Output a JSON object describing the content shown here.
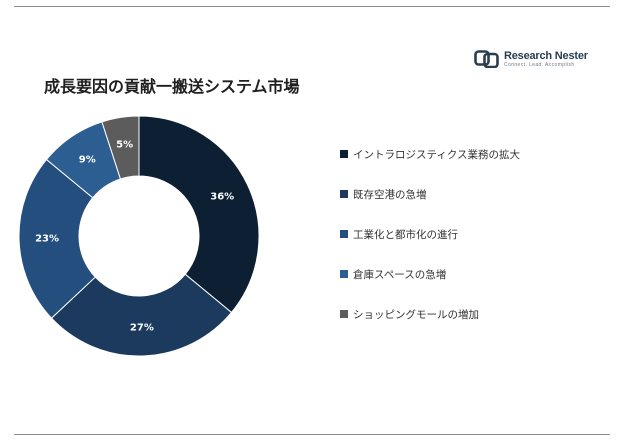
{
  "header": {
    "title": "成長要因の貢献一搬送システム市場"
  },
  "logo": {
    "name": "Research Nester",
    "tagline": "Connect. Lead. Accomplish",
    "icon": "research-nester-logo-icon"
  },
  "chart_data": {
    "type": "pie",
    "donut": true,
    "title": "成長要因の貢献一搬送システム市場",
    "legend_position": "right",
    "categories": [
      "イントラロジスティクス業務の拡大",
      "既存空港の急増",
      "工業化と都市化の進行",
      "倉庫スペースの急増",
      "ショッピングモールの増加"
    ],
    "values": [
      36,
      27,
      23,
      9,
      5
    ],
    "value_labels": [
      "36%",
      "27%",
      "23%",
      "9%",
      "5%"
    ],
    "colors": [
      "#0c1f33",
      "#1b3a5e",
      "#234e7d",
      "#2c5e91",
      "#5c5c5c"
    ]
  }
}
